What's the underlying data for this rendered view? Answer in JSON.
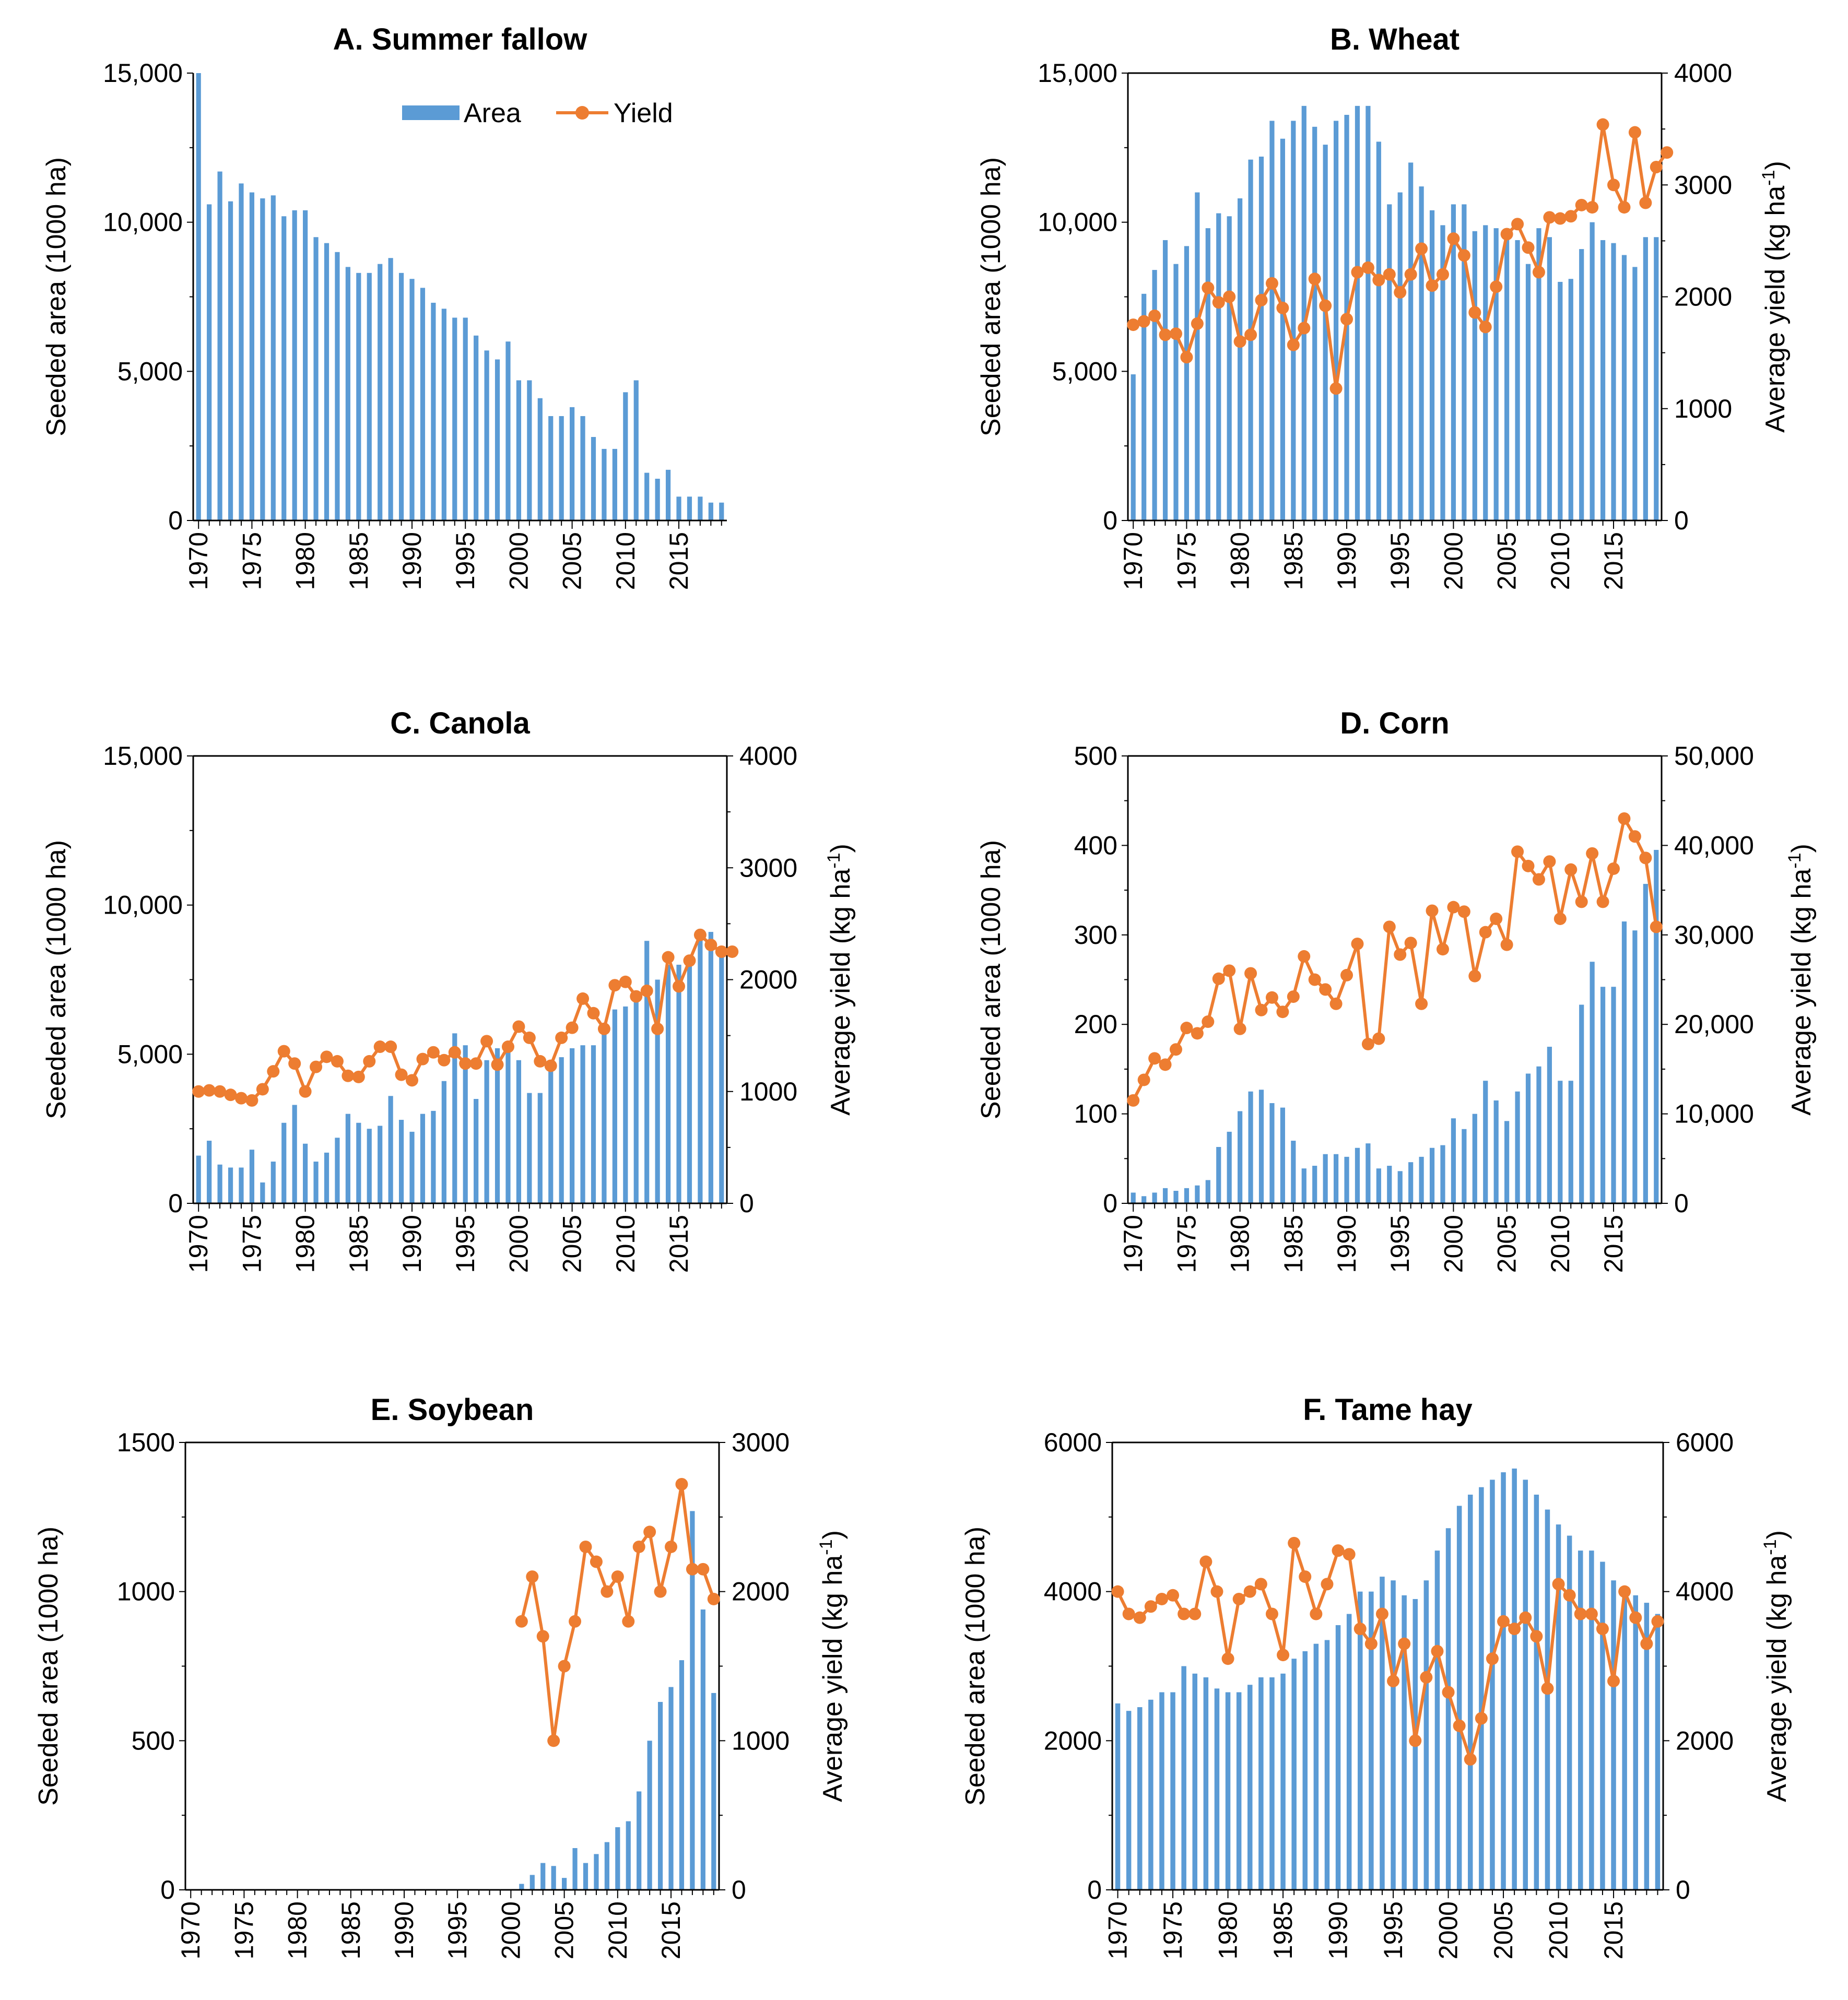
{
  "figure": {
    "legend": {
      "area_label": "Area",
      "yield_label": "Yield"
    },
    "colors": {
      "area": "#5B9BD5",
      "yield": "#ED7D31",
      "axis": "#000000"
    }
  },
  "chart_data": [
    {
      "id": "A",
      "type": "bar",
      "title": "A. Summer fallow",
      "xlabel": "",
      "ylabel": "Seeded area (1000 ha)",
      "y2label": "",
      "x_ticks": [
        1970,
        1975,
        1980,
        1985,
        1990,
        1995,
        2000,
        2005,
        2010,
        2015
      ],
      "ylim": [
        0,
        15000
      ],
      "y_ticks": [
        0,
        5000,
        10000,
        15000
      ],
      "y_tick_labels": [
        "0",
        "5,000",
        "10,000",
        "15,000"
      ],
      "legend": "top-right",
      "series": [
        {
          "name": "Area",
          "kind": "bar",
          "start_year": 1970,
          "values": [
            15000,
            10600,
            11700,
            10700,
            11300,
            11000,
            10800,
            10900,
            10200,
            10400,
            10400,
            9500,
            9300,
            9000,
            8500,
            8300,
            8300,
            8600,
            8800,
            8300,
            8100,
            7800,
            7300,
            7100,
            6800,
            6800,
            6200,
            5700,
            5400,
            6000,
            4700,
            4700,
            4100,
            3500,
            3500,
            3800,
            3500,
            2800,
            2400,
            2400,
            4300,
            4700,
            1600,
            1400,
            1700,
            800,
            800,
            800,
            600,
            600
          ]
        }
      ]
    },
    {
      "id": "B",
      "type": "bar+line",
      "title": "B. Wheat",
      "xlabel": "",
      "ylabel": "Seeded area (1000 ha)",
      "y2label": "Average yield (kg ha-1)",
      "y2label_main": "Average yield (kg ha",
      "y2label_sup": "-1",
      "y2label_close": ")",
      "x_ticks": [
        1970,
        1975,
        1980,
        1985,
        1990,
        1995,
        2000,
        2005,
        2010,
        2015
      ],
      "ylim": [
        0,
        15000
      ],
      "y_ticks": [
        0,
        5000,
        10000,
        15000
      ],
      "y_tick_labels": [
        "0",
        "5,000",
        "10,000",
        "15,000"
      ],
      "y2lim": [
        0,
        4000
      ],
      "y2_ticks": [
        0,
        1000,
        2000,
        3000,
        4000
      ],
      "y2_tick_labels": [
        "0",
        "1000",
        "2000",
        "3000",
        "4000"
      ],
      "series": [
        {
          "name": "Area",
          "kind": "bar",
          "axis": "left",
          "start_year": 1970,
          "values": [
            4900,
            7600,
            8400,
            9400,
            8600,
            9200,
            11000,
            9800,
            10300,
            10200,
            10800,
            12100,
            12200,
            13400,
            12800,
            13400,
            13900,
            13200,
            12600,
            13400,
            13600,
            13900,
            13900,
            12700,
            10600,
            11000,
            12000,
            11200,
            10400,
            9900,
            10600,
            10600,
            9700,
            9900,
            9800,
            9700,
            9400,
            8600,
            9800,
            9500,
            8000,
            8100,
            9100,
            10000,
            9400,
            9300,
            8900,
            8500,
            9500,
            9500
          ]
        },
        {
          "name": "Yield",
          "kind": "line",
          "axis": "right",
          "start_year": 1970,
          "values": [
            1750,
            1780,
            1830,
            1660,
            1670,
            1460,
            1760,
            2080,
            1950,
            2000,
            1600,
            1660,
            1970,
            2120,
            1900,
            1570,
            1720,
            2160,
            1920,
            1180,
            1800,
            2220,
            2260,
            2150,
            2200,
            2040,
            2200,
            2430,
            2100,
            2200,
            2520,
            2370,
            1860,
            1730,
            2090,
            2560,
            2650,
            2440,
            2220,
            2710,
            2700,
            2720,
            2820,
            2800,
            3540,
            3000,
            2800,
            3470,
            2840,
            3160,
            3290
          ]
        }
      ]
    },
    {
      "id": "C",
      "type": "bar+line",
      "title": "C. Canola",
      "xlabel": "",
      "ylabel": "Seeded area (1000 ha)",
      "y2label": "Average yield (kg ha-1)",
      "y2label_main": "Average yield (kg ha",
      "y2label_sup": "-1",
      "y2label_close": ")",
      "x_ticks": [
        1970,
        1975,
        1980,
        1985,
        1990,
        1995,
        2000,
        2005,
        2010,
        2015
      ],
      "ylim": [
        0,
        15000
      ],
      "y_ticks": [
        0,
        5000,
        10000,
        15000
      ],
      "y_tick_labels": [
        "0",
        "5,000",
        "10,000",
        "15,000"
      ],
      "y2lim": [
        0,
        4000
      ],
      "y2_ticks": [
        0,
        1000,
        2000,
        3000,
        4000
      ],
      "y2_tick_labels": [
        "0",
        "1000",
        "2000",
        "3000",
        "4000"
      ],
      "series": [
        {
          "name": "Area",
          "kind": "bar",
          "axis": "left",
          "start_year": 1970,
          "values": [
            1600,
            2100,
            1300,
            1200,
            1200,
            1800,
            700,
            1400,
            2700,
            3300,
            2000,
            1400,
            1700,
            2200,
            3000,
            2700,
            2500,
            2600,
            3600,
            2800,
            2400,
            3000,
            3100,
            4100,
            5700,
            5300,
            3500,
            4800,
            5200,
            5300,
            4800,
            3700,
            3700,
            4700,
            4900,
            5200,
            5300,
            5300,
            6000,
            6500,
            6600,
            7000,
            8800,
            7500,
            8000,
            8000,
            8300,
            9200,
            9100,
            8600
          ]
        },
        {
          "name": "Yield",
          "kind": "line",
          "axis": "right",
          "start_year": 1970,
          "values": [
            1000,
            1010,
            1000,
            970,
            940,
            920,
            1020,
            1180,
            1360,
            1250,
            1000,
            1220,
            1310,
            1270,
            1140,
            1130,
            1270,
            1400,
            1400,
            1150,
            1100,
            1290,
            1350,
            1280,
            1350,
            1250,
            1250,
            1450,
            1240,
            1400,
            1580,
            1480,
            1270,
            1230,
            1480,
            1570,
            1830,
            1700,
            1560,
            1950,
            1980,
            1850,
            1900,
            1560,
            2200,
            1940,
            2170,
            2400,
            2310,
            2250,
            2250
          ]
        }
      ]
    },
    {
      "id": "D",
      "type": "bar+line",
      "title": "D. Corn",
      "xlabel": "",
      "ylabel": "Seeded area (1000 ha)",
      "y2label": "Average yield (kg ha-1)",
      "y2label_main": "Average yield (kg ha",
      "y2label_sup": "-1",
      "y2label_close": ")",
      "x_ticks": [
        1970,
        1975,
        1980,
        1985,
        1990,
        1995,
        2000,
        2005,
        2010,
        2015
      ],
      "ylim": [
        0,
        500
      ],
      "y_ticks": [
        0,
        100,
        200,
        300,
        400,
        500
      ],
      "y_tick_labels": [
        "0",
        "100",
        "200",
        "300",
        "400",
        "500"
      ],
      "y2lim": [
        0,
        50000
      ],
      "y2_ticks": [
        0,
        10000,
        20000,
        30000,
        40000,
        50000
      ],
      "y2_tick_labels": [
        "0",
        "10,000",
        "20,000",
        "30,000",
        "40,000",
        "50,000"
      ],
      "series": [
        {
          "name": "Area",
          "kind": "bar",
          "axis": "left",
          "start_year": 1970,
          "values": [
            12,
            8,
            12,
            17,
            14,
            17,
            20,
            26,
            63,
            80,
            103,
            125,
            127,
            112,
            107,
            70,
            39,
            42,
            55,
            55,
            52,
            62,
            67,
            39,
            42,
            36,
            46,
            52,
            62,
            65,
            95,
            83,
            100,
            137,
            115,
            92,
            125,
            145,
            153,
            175,
            137,
            137,
            222,
            270,
            242,
            242,
            315,
            305,
            357,
            395
          ]
        },
        {
          "name": "Yield",
          "kind": "line",
          "axis": "right",
          "start_year": 1970,
          "values": [
            11500,
            13800,
            16200,
            15500,
            17200,
            19600,
            19000,
            20300,
            25100,
            26000,
            19500,
            25700,
            21600,
            23000,
            21400,
            23100,
            27600,
            25000,
            23900,
            22300,
            25500,
            29000,
            17800,
            18400,
            30900,
            27800,
            29100,
            22300,
            32700,
            28400,
            33100,
            32600,
            25400,
            30300,
            31800,
            28900,
            39300,
            37700,
            36200,
            38200,
            31800,
            37300,
            33700,
            39100,
            33700,
            37400,
            43000,
            41000,
            38600,
            30900
          ]
        }
      ]
    },
    {
      "id": "E",
      "type": "bar+line",
      "title": "E. Soybean",
      "xlabel": "",
      "ylabel": "Seeded area (1000 ha)",
      "y2label": "Average yield (kg ha-1)",
      "y2label_main": "Average yield (kg ha",
      "y2label_sup": "-1",
      "y2label_close": ")",
      "x_ticks": [
        1970,
        1975,
        1980,
        1985,
        1990,
        1995,
        2000,
        2005,
        2010,
        2015
      ],
      "ylim": [
        0,
        1500
      ],
      "y_ticks": [
        0,
        500,
        1000,
        1500
      ],
      "y_tick_labels": [
        "0",
        "500",
        "1000",
        "1500"
      ],
      "y2lim": [
        0,
        3000
      ],
      "y2_ticks": [
        0,
        1000,
        2000,
        3000
      ],
      "y2_tick_labels": [
        "0",
        "1000",
        "2000",
        "3000"
      ],
      "series": [
        {
          "name": "Area",
          "kind": "bar",
          "axis": "left",
          "start_year": 1970,
          "values": [
            0,
            0,
            0,
            0,
            0,
            0,
            0,
            0,
            0,
            0,
            0,
            0,
            0,
            0,
            0,
            0,
            0,
            0,
            0,
            0,
            0,
            0,
            0,
            0,
            0,
            0,
            0,
            0,
            0,
            0,
            0,
            20,
            50,
            90,
            80,
            40,
            140,
            90,
            120,
            160,
            210,
            230,
            330,
            500,
            630,
            680,
            770,
            1270,
            940,
            660
          ]
        },
        {
          "name": "Yield",
          "kind": "line",
          "axis": "right",
          "start_year": 2001,
          "values": [
            1800,
            2100,
            1700,
            1000,
            1500,
            1800,
            2300,
            2200,
            2000,
            2100,
            1800,
            2300,
            2400,
            2000,
            2300,
            2720,
            2150,
            2150,
            1950
          ]
        }
      ]
    },
    {
      "id": "F",
      "type": "bar+line",
      "title": "F. Tame hay",
      "xlabel": "",
      "ylabel": "Seeded area (1000 ha)",
      "y2label": "Average yield (kg ha-1)",
      "y2label_main": "Average yield (kg ha",
      "y2label_sup": "-1",
      "y2label_close": ")",
      "x_ticks": [
        1970,
        1975,
        1980,
        1985,
        1990,
        1995,
        2000,
        2005,
        2010,
        2015
      ],
      "ylim": [
        0,
        6000
      ],
      "y_ticks": [
        0,
        2000,
        4000,
        6000
      ],
      "y_tick_labels": [
        "0",
        "2000",
        "4000",
        "6000"
      ],
      "y2lim": [
        0,
        6000
      ],
      "y2_ticks": [
        0,
        2000,
        4000,
        6000
      ],
      "y2_tick_labels": [
        "0",
        "2000",
        "4000",
        "6000"
      ],
      "series": [
        {
          "name": "Area",
          "kind": "bar",
          "axis": "left",
          "start_year": 1970,
          "values": [
            2500,
            2400,
            2450,
            2550,
            2650,
            2650,
            3000,
            2900,
            2850,
            2700,
            2650,
            2650,
            2750,
            2850,
            2850,
            2900,
            3100,
            3200,
            3300,
            3350,
            3550,
            3700,
            4000,
            4000,
            4200,
            4150,
            3950,
            3900,
            4150,
            4550,
            4850,
            5150,
            5300,
            5400,
            5500,
            5600,
            5650,
            5500,
            5300,
            5100,
            4900,
            4750,
            4550,
            4550,
            4400,
            4150,
            4050,
            3950,
            3850,
            3700
          ]
        },
        {
          "name": "Yield",
          "kind": "line",
          "axis": "right",
          "start_year": 1970,
          "values": [
            4000,
            3700,
            3650,
            3800,
            3900,
            3950,
            3700,
            3700,
            4400,
            4000,
            3100,
            3900,
            4000,
            4100,
            3700,
            3150,
            4650,
            4200,
            3700,
            4100,
            4550,
            4500,
            3500,
            3300,
            3700,
            2800,
            3300,
            2000,
            2850,
            3200,
            2650,
            2200,
            1750,
            2300,
            3100,
            3600,
            3500,
            3650,
            3400,
            2700,
            4100,
            3950,
            3700,
            3700,
            3500,
            2800,
            4000,
            3650,
            3300,
            3600
          ]
        }
      ]
    }
  ]
}
